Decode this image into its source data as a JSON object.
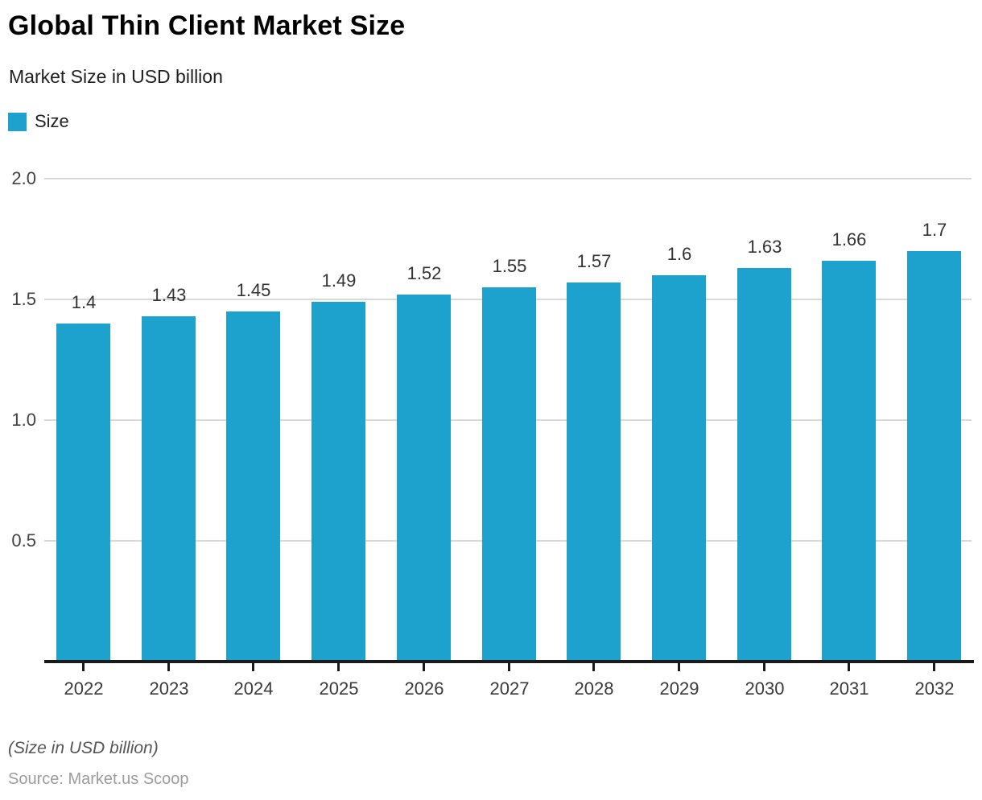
{
  "header": {
    "title": "Global Thin Client Market Size",
    "subtitle": "Market Size in USD billion"
  },
  "legend": {
    "label": "Size"
  },
  "chart_data": {
    "type": "bar",
    "title": "Global Thin Client Market Size",
    "subtitle": "Market Size in USD billion",
    "categories": [
      "2022",
      "2023",
      "2024",
      "2025",
      "2026",
      "2027",
      "2028",
      "2029",
      "2030",
      "2031",
      "2032"
    ],
    "series": [
      {
        "name": "Size",
        "values": [
          1.4,
          1.43,
          1.45,
          1.49,
          1.52,
          1.55,
          1.57,
          1.6,
          1.63,
          1.66,
          1.7
        ]
      }
    ],
    "value_labels": [
      "1.4",
      "1.43",
      "1.45",
      "1.49",
      "1.52",
      "1.55",
      "1.57",
      "1.6",
      "1.63",
      "1.66",
      "1.7"
    ],
    "xlabel": "",
    "ylabel": "",
    "ylim": [
      0,
      2.0
    ],
    "yticks": [
      0.5,
      1.0,
      1.5,
      2.0
    ],
    "ytick_labels": [
      "0.5",
      "1.0",
      "1.5",
      "2.0"
    ],
    "grid": true,
    "legend_position": "top-left"
  },
  "footer": {
    "note": "(Size in USD billion)",
    "source": "Source: Market.us Scoop"
  },
  "colors": {
    "bar": "#1CA2CD",
    "gridline": "#D8D8D8",
    "axis": "#1A1A1A",
    "tick": "#1A1A1A"
  }
}
